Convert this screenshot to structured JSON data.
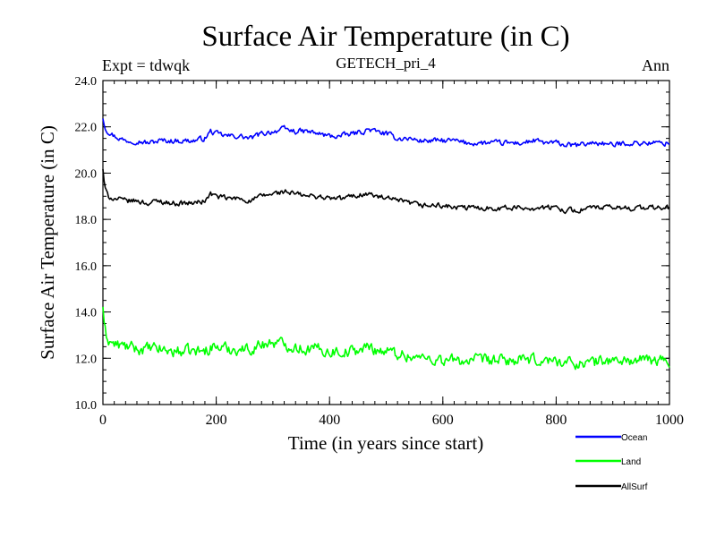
{
  "chart_data": {
    "type": "line",
    "title": "Surface Air Temperature (in C)",
    "subtitle": "GETECH_pri_4",
    "experiment_label": "Expt = tdwqk",
    "season_label": "Ann",
    "xlabel": "Time (in years since start)",
    "ylabel": "Surface Air Temperature (in C)",
    "xlim": [
      0,
      1000
    ],
    "ylim": [
      10,
      24
    ],
    "x_ticks": [
      0,
      200,
      400,
      600,
      800,
      1000
    ],
    "x_tick_labels": [
      "0",
      "200",
      "400",
      "600",
      "800",
      "1000"
    ],
    "y_ticks": [
      10,
      12,
      14,
      16,
      18,
      20,
      22,
      24
    ],
    "y_tick_labels": [
      "10.0",
      "12.0",
      "14.0",
      "16.0",
      "18.0",
      "20.0",
      "22.0",
      "24.0"
    ],
    "grid": false,
    "legend_position": "bottom-right, below plot",
    "series": [
      {
        "name": "Ocean",
        "color": "#0000ff",
        "noise": 0.1,
        "x": [
          0,
          2,
          5,
          10,
          20,
          40,
          60,
          80,
          100,
          120,
          140,
          160,
          180,
          190,
          200,
          220,
          240,
          260,
          280,
          300,
          320,
          340,
          360,
          380,
          400,
          420,
          440,
          460,
          470,
          480,
          500,
          520,
          540,
          560,
          580,
          600,
          620,
          640,
          660,
          680,
          700,
          720,
          740,
          760,
          780,
          800,
          820,
          840,
          860,
          880,
          900,
          920,
          940,
          960,
          980,
          1000
        ],
        "y": [
          22.4,
          22.2,
          21.9,
          21.8,
          21.6,
          21.4,
          21.4,
          21.3,
          21.4,
          21.4,
          21.4,
          21.4,
          21.5,
          21.8,
          21.7,
          21.6,
          21.6,
          21.5,
          21.7,
          21.8,
          21.9,
          21.8,
          21.8,
          21.7,
          21.6,
          21.6,
          21.7,
          21.8,
          21.9,
          21.8,
          21.7,
          21.5,
          21.5,
          21.4,
          21.4,
          21.4,
          21.4,
          21.3,
          21.3,
          21.3,
          21.3,
          21.3,
          21.3,
          21.4,
          21.3,
          21.3,
          21.2,
          21.2,
          21.3,
          21.3,
          21.2,
          21.3,
          21.3,
          21.3,
          21.3,
          21.3
        ]
      },
      {
        "name": "Land",
        "color": "#00ff00",
        "noise": 0.22,
        "x": [
          0,
          2,
          5,
          10,
          20,
          40,
          60,
          80,
          100,
          120,
          140,
          160,
          180,
          190,
          200,
          220,
          240,
          260,
          280,
          300,
          320,
          340,
          360,
          380,
          400,
          420,
          440,
          460,
          470,
          480,
          500,
          520,
          540,
          560,
          580,
          600,
          620,
          640,
          660,
          680,
          700,
          720,
          740,
          760,
          780,
          800,
          820,
          840,
          860,
          880,
          900,
          920,
          940,
          960,
          980,
          1000
        ],
        "y": [
          14.3,
          13.4,
          13.0,
          12.8,
          12.6,
          12.5,
          12.4,
          12.4,
          12.4,
          12.3,
          12.3,
          12.3,
          12.3,
          12.5,
          12.5,
          12.4,
          12.4,
          12.4,
          12.6,
          12.7,
          12.6,
          12.5,
          12.4,
          12.4,
          12.3,
          12.3,
          12.3,
          12.4,
          12.5,
          12.4,
          12.3,
          12.2,
          12.1,
          12.0,
          12.0,
          11.9,
          11.9,
          11.9,
          11.9,
          11.9,
          11.9,
          11.9,
          11.9,
          11.9,
          11.9,
          11.9,
          11.8,
          11.8,
          11.8,
          11.9,
          11.9,
          11.9,
          11.9,
          11.9,
          11.9,
          11.9
        ]
      },
      {
        "name": "AllSurf",
        "color": "#000000",
        "noise": 0.1,
        "x": [
          0,
          2,
          5,
          10,
          20,
          40,
          60,
          80,
          100,
          120,
          140,
          160,
          180,
          190,
          200,
          220,
          240,
          260,
          280,
          300,
          320,
          340,
          360,
          380,
          400,
          420,
          440,
          460,
          470,
          480,
          500,
          520,
          540,
          560,
          580,
          600,
          620,
          640,
          660,
          680,
          700,
          720,
          740,
          760,
          780,
          800,
          820,
          840,
          860,
          880,
          900,
          920,
          940,
          960,
          980,
          1000
        ],
        "y": [
          20.2,
          19.6,
          19.2,
          19.0,
          18.9,
          18.8,
          18.8,
          18.7,
          18.8,
          18.7,
          18.7,
          18.7,
          18.8,
          19.1,
          19.0,
          18.9,
          18.9,
          18.8,
          19.0,
          19.1,
          19.2,
          19.1,
          19.0,
          19.0,
          18.9,
          18.9,
          19.0,
          19.1,
          19.1,
          19.0,
          18.9,
          18.8,
          18.7,
          18.6,
          18.6,
          18.6,
          18.5,
          18.5,
          18.5,
          18.5,
          18.5,
          18.5,
          18.5,
          18.5,
          18.5,
          18.5,
          18.4,
          18.4,
          18.5,
          18.5,
          18.5,
          18.5,
          18.5,
          18.5,
          18.5,
          18.5
        ]
      }
    ]
  }
}
